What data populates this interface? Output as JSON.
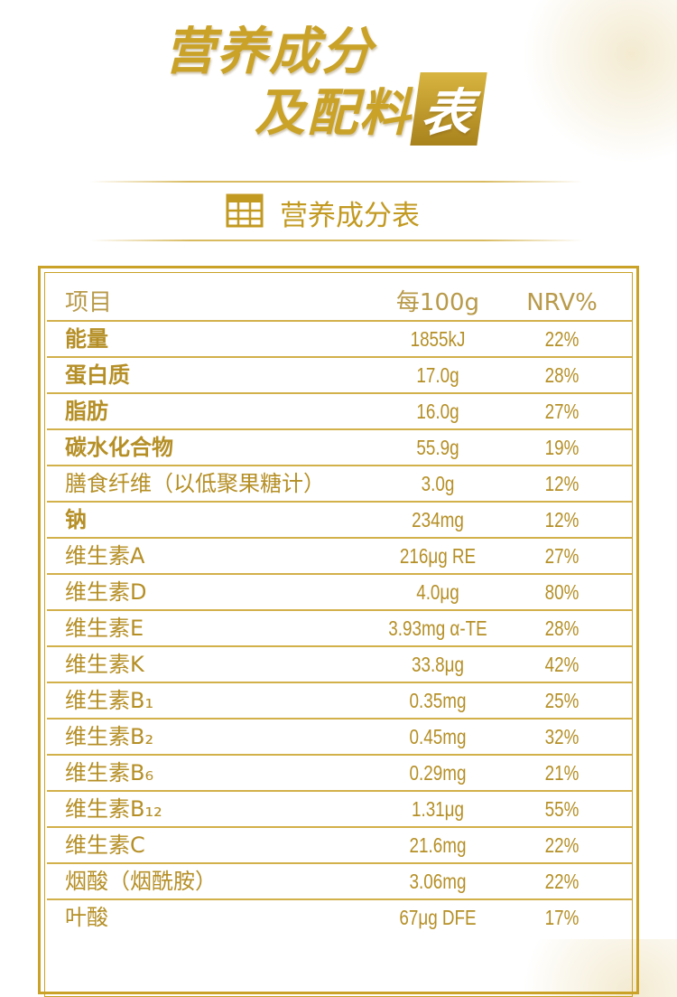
{
  "header": {
    "title_line1": "营养成分",
    "title_line2": "及配料",
    "title_box": "表",
    "subtitle": "营养成分表"
  },
  "table": {
    "columns": [
      "项目",
      "每100g",
      "NRV%"
    ],
    "rows": [
      {
        "name": "能量",
        "per_100g": "1855kJ",
        "nrv": "22%",
        "bold": true
      },
      {
        "name": "蛋白质",
        "per_100g": "17.0g",
        "nrv": "28%",
        "bold": true
      },
      {
        "name": "脂肪",
        "per_100g": "16.0g",
        "nrv": "27%",
        "bold": true
      },
      {
        "name": "碳水化合物",
        "per_100g": "55.9g",
        "nrv": "19%",
        "bold": true
      },
      {
        "name": "膳食纤维（以低聚果糖计）",
        "per_100g": "3.0g",
        "nrv": "12%",
        "bold": false
      },
      {
        "name": "钠",
        "per_100g": "234mg",
        "nrv": "12%",
        "bold": true
      },
      {
        "name": "维生素A",
        "per_100g": "216μg RE",
        "nrv": "27%",
        "bold": false
      },
      {
        "name": "维生素D",
        "per_100g": "4.0μg",
        "nrv": "80%",
        "bold": false
      },
      {
        "name": "维生素E",
        "per_100g": "3.93mg α-TE",
        "nrv": "28%",
        "bold": false
      },
      {
        "name": "维生素K",
        "per_100g": "33.8μg",
        "nrv": "42%",
        "bold": false
      },
      {
        "name": "维生素B₁",
        "per_100g": "0.35mg",
        "nrv": "25%",
        "bold": false
      },
      {
        "name": "维生素B₂",
        "per_100g": "0.45mg",
        "nrv": "32%",
        "bold": false
      },
      {
        "name": "维生素B₆",
        "per_100g": "0.29mg",
        "nrv": "21%",
        "bold": false
      },
      {
        "name": "维生素B₁₂",
        "per_100g": "1.31μg",
        "nrv": "55%",
        "bold": false
      },
      {
        "name": "维生素C",
        "per_100g": "21.6mg",
        "nrv": "22%",
        "bold": false
      },
      {
        "name": "烟酸（烟酰胺）",
        "per_100g": "3.06mg",
        "nrv": "22%",
        "bold": false
      },
      {
        "name": "叶酸",
        "per_100g": "67μg DFE",
        "nrv": "17%",
        "bold": false
      }
    ]
  }
}
